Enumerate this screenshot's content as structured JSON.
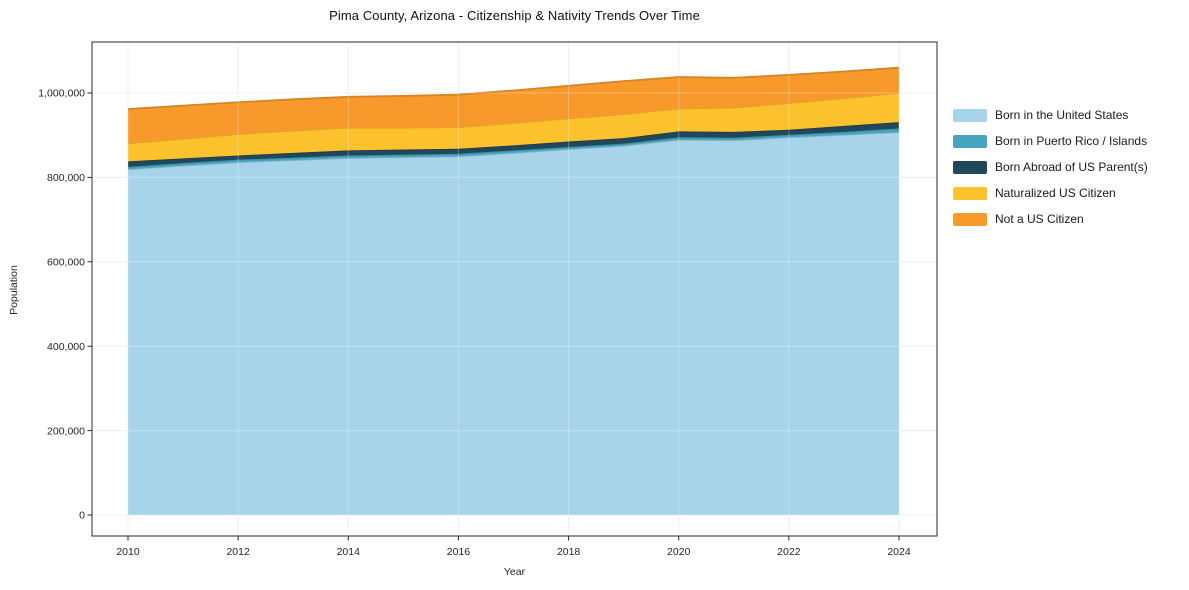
{
  "title": "Pima County, Arizona - Citizenship & Nativity Trends Over Time",
  "axes": {
    "x": {
      "label": "Year",
      "ticks": [
        "2010",
        "2012",
        "2014",
        "2016",
        "2018",
        "2020",
        "2022",
        "2024"
      ],
      "tick_years": [
        2010,
        2012,
        2014,
        2016,
        2018,
        2020,
        2022,
        2024
      ]
    },
    "y": {
      "label": "Population",
      "ticks": [
        "0",
        "200,000",
        "400,000",
        "600,000",
        "800,000",
        "1,000,000"
      ],
      "tick_values": [
        0,
        200000,
        400000,
        600000,
        800000,
        1000000
      ]
    }
  },
  "chart_data": {
    "type": "area",
    "stacked": true,
    "title": "Pima County, Arizona - Citizenship & Nativity Trends Over Time",
    "xlabel": "Year",
    "ylabel": "Population",
    "x": [
      2010,
      2011,
      2012,
      2013,
      2014,
      2015,
      2016,
      2017,
      2018,
      2019,
      2020,
      2021,
      2022,
      2023,
      2024
    ],
    "series": [
      {
        "name": "Born in the United States",
        "color": "#a7d4e8",
        "values": [
          819000,
          828000,
          836000,
          841000,
          846000,
          848000,
          850000,
          858000,
          867000,
          875000,
          889000,
          888000,
          895000,
          901000,
          907000
        ]
      },
      {
        "name": "Born in Puerto Rico / Islands",
        "color": "#45a5c1",
        "values": [
          6000,
          6000,
          6000,
          6000,
          6000,
          6000,
          6000,
          6000,
          5000,
          5000,
          6000,
          6000,
          6000,
          7000,
          9000
        ]
      },
      {
        "name": "Born Abroad of US Parent(s)",
        "color": "#21475a",
        "values": [
          13000,
          11000,
          10000,
          11000,
          12000,
          12000,
          12000,
          12000,
          13000,
          13000,
          14000,
          14000,
          12000,
          14000,
          15000
        ]
      },
      {
        "name": "Naturalized US Citizen",
        "color": "#fcc22d",
        "values": [
          43000,
          47000,
          51000,
          53000,
          54000,
          52000,
          51000,
          53000,
          55000,
          57000,
          54000,
          57000,
          63000,
          66000,
          69000
        ]
      },
      {
        "name": "Not a US Citizen",
        "color": "#f8992c",
        "values": [
          81000,
          78000,
          75000,
          74000,
          73000,
          75000,
          77000,
          77000,
          77000,
          78000,
          75000,
          71000,
          67000,
          63000,
          60000
        ]
      }
    ],
    "totals": [
      962000,
      970000,
      978000,
      985000,
      991000,
      993000,
      996000,
      1006000,
      1017000,
      1028000,
      1038000,
      1036000,
      1043000,
      1051000,
      1060000
    ],
    "xlim": [
      2009.35,
      2024.7
    ],
    "ylim": [
      -50000,
      1120000
    ],
    "grid": true,
    "legend_position": "right"
  },
  "colors": {
    "background": "#ffffff",
    "spine": "#2a2a2a",
    "gridline": "#e9e9e9",
    "tick_text": "#262626",
    "title_text": "#111111"
  }
}
